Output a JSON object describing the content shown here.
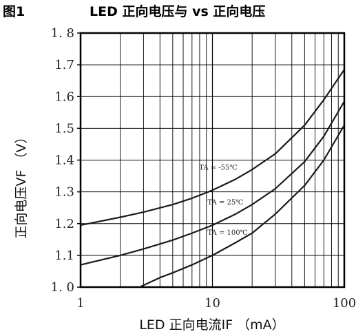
{
  "figure": {
    "label": "图1",
    "title": "LED 正向电压与 vs 正向电压"
  },
  "chart_data": {
    "type": "line",
    "xlabel": "LED 正向电流IF （mA）",
    "ylabel": "正向电压VF （V）",
    "xscale": "log",
    "xlim": [
      1,
      100
    ],
    "ylim": [
      1.0,
      1.8
    ],
    "grid": true,
    "x_ticks": [
      "1",
      "10",
      "100"
    ],
    "y_ticks": [
      "1. 0",
      "1.1",
      "1.2",
      "1.3",
      "1.4",
      "1.5",
      "1.6",
      "1.7",
      "1. 8"
    ],
    "series": [
      {
        "name": "TA = -55°C",
        "x": [
          1,
          2,
          3,
          5,
          7,
          10,
          15,
          20,
          30,
          50,
          70,
          100
        ],
        "y": [
          1.195,
          1.22,
          1.236,
          1.26,
          1.28,
          1.305,
          1.34,
          1.37,
          1.42,
          1.51,
          1.59,
          1.685
        ]
      },
      {
        "name": "TA = 25°C",
        "x": [
          1,
          2,
          3,
          5,
          7,
          10,
          15,
          20,
          30,
          50,
          70,
          100
        ],
        "y": [
          1.07,
          1.1,
          1.12,
          1.148,
          1.17,
          1.195,
          1.23,
          1.26,
          1.31,
          1.395,
          1.475,
          1.585
        ]
      },
      {
        "name": "TA = 100°C",
        "x": [
          2.8,
          4,
          5,
          7,
          10,
          15,
          20,
          30,
          50,
          70,
          100
        ],
        "y": [
          1.0,
          1.03,
          1.045,
          1.07,
          1.1,
          1.14,
          1.17,
          1.23,
          1.32,
          1.4,
          1.51
        ]
      }
    ],
    "annotations": [
      {
        "text": "TA = -55℃",
        "x": 9.5,
        "y": 1.37
      },
      {
        "text": "TA = 25℃",
        "x": 11,
        "y": 1.26
      },
      {
        "text": "TA = 100℃",
        "x": 11,
        "y": 1.165
      }
    ]
  }
}
